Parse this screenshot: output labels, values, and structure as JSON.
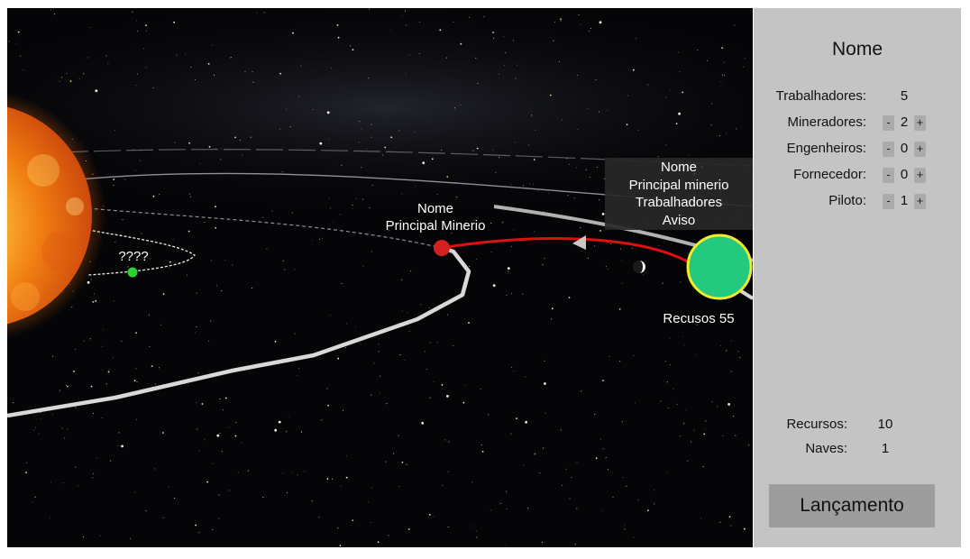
{
  "scene": {
    "labels": {
      "unknown_planet": "????",
      "red_planet_name": "Nome",
      "red_planet_subtitle": "Principal Minerio",
      "home_resources": "Recusos 55"
    },
    "tooltip": {
      "lines": [
        "Nome",
        "Principal minerio",
        "Trabalhadores",
        "Aviso"
      ]
    },
    "colors": {
      "space_bg": "#050507",
      "home_planet": "#22c97f",
      "home_planet_ring": "#f2ec2a",
      "route_line": "#dd1010",
      "red_planet": "#d42020",
      "small_planet": "#2bd22b"
    }
  },
  "panel": {
    "title": "Nome",
    "workers_label": "Trabalhadores:",
    "workers_value": "5",
    "roles": [
      {
        "label": "Mineradores:",
        "value": "2",
        "minus": "-",
        "plus": "+"
      },
      {
        "label": "Engenheiros:",
        "value": "0",
        "minus": "-",
        "plus": "+"
      },
      {
        "label": "Fornecedor:",
        "value": "0",
        "minus": "-",
        "plus": "+"
      },
      {
        "label": "Piloto:",
        "value": "1",
        "minus": "-",
        "plus": "+"
      }
    ],
    "resources_label": "Recursos:",
    "resources_value": "10",
    "ships_label": "Naves:",
    "ships_value": "1",
    "launch_button": "Lançamento"
  }
}
